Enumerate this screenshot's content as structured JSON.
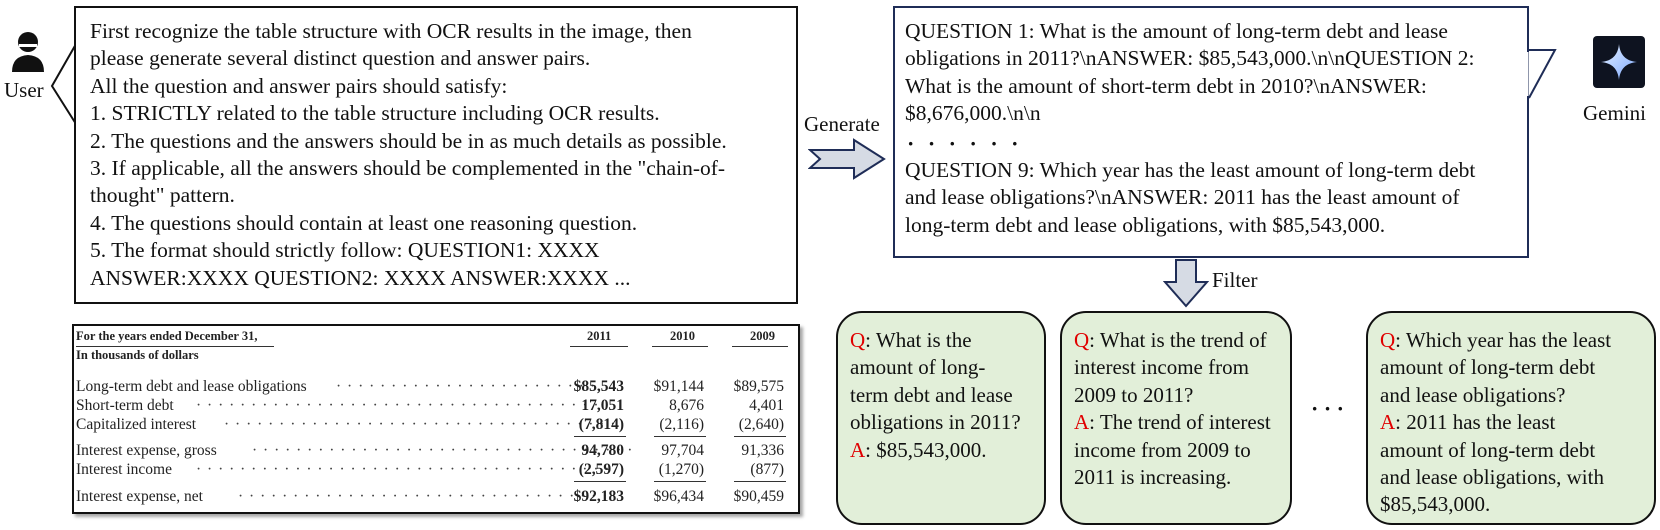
{
  "user": {
    "label": "User"
  },
  "gemini": {
    "label": "Gemini"
  },
  "prompt": {
    "lines": [
      "First recognize the table structure with OCR results in the image, then",
      "please generate several distinct question and answer pairs.",
      "All the question and answer pairs should satisfy:",
      "1. STRICTLY related to the table structure including OCR results.",
      "2. The questions and the answers should be in as much details as possible.",
      "3. If applicable, all the answers should be complemented in the \"chain-of-",
      "thought\" pattern.",
      "4. The questions should contain at least one reasoning question.",
      "5. The format should strictly follow: QUESTION1: XXXX",
      "ANSWER:XXXX QUESTION2: XXXX ANSWER:XXXX ..."
    ]
  },
  "generate_label": "Generate",
  "filter_label": "Filter",
  "response": {
    "lines_top": [
      "QUESTION 1: What is the amount of long-term debt and lease",
      "obligations in 2011?\\nANSWER: $85,543,000.\\n\\nQUESTION 2:",
      "What is the amount of short-term debt in 2010?\\nANSWER:",
      "$8,676,000.\\n\\n"
    ],
    "ellipsis": "· · · · · ·",
    "lines_bottom": [
      "QUESTION 9: Which year has the least amount of long-term debt",
      "and lease obligations?\\nANSWER: 2011 has the least amount of",
      "long-term debt and lease obligations, with $85,543,000."
    ]
  },
  "table": {
    "header_left_1": "For the years ended December 31,",
    "header_left_2": "In thousands of dollars",
    "years": [
      "2011",
      "2010",
      "2009"
    ],
    "rows": [
      {
        "label": "Long-term debt and lease obligations",
        "dots": "· · · · · · · · · · · · · · · · · · · · · · · ·",
        "v2011": "$85,543",
        "v2010": "$91,144",
        "v2009": "$89,575"
      },
      {
        "label": "Short-term debt",
        "dots": "· · · · · · · · · · · · · · · · · · · · · · · · · · · · · · · · · · · · ·",
        "v2011": "17,051",
        "v2010": "8,676",
        "v2009": "4,401"
      },
      {
        "label": "Capitalized interest",
        "dots": "· · · · · · · · · · · · · · · · · · · · · · · · · · · · · · · · · · · ·",
        "v2011": "(7,814)",
        "v2010": "(2,116)",
        "v2009": "(2,640)"
      },
      {
        "label": "Interest expense, gross",
        "dots": "· · · · · · · · · · · · · · · · · · · · · · · · · · · · · · · · · · ·",
        "v2011": "94,780",
        "v2010": "97,704",
        "v2009": "91,336"
      },
      {
        "label": "Interest income",
        "dots": "· · · · · · · · · · · · · · · · · · · · · · · · · · · · · · · · · · · · · ·",
        "v2011": "(2,597)",
        "v2010": "(1,270)",
        "v2009": "(877)"
      },
      {
        "label": "Interest expense, net",
        "dots": "· · · · · · · · · · · · · · · · · · · · · · · · · · · · · · · · · ·",
        "v2011": "$92,183",
        "v2010": "$96,434",
        "v2009": "$90,459"
      }
    ]
  },
  "qa_cards": [
    {
      "q_prefix": "Q",
      "q_lines": [
        ": What is the",
        "amount of long-",
        "term debt and lease",
        "obligations in 2011?"
      ],
      "a_prefix": "A",
      "a_lines": [
        ": $85,543,000."
      ]
    },
    {
      "q_prefix": "Q",
      "q_lines": [
        ": What is the trend of",
        "interest income from",
        "2009 to 2011?"
      ],
      "a_prefix": "A",
      "a_lines": [
        ": The trend of interest",
        "income from 2009 to",
        "2011 is increasing."
      ]
    },
    {
      "q_prefix": "Q",
      "q_lines": [
        ": Which year has the least",
        "amount of long-term debt",
        "and lease obligations?"
      ],
      "a_prefix": "A",
      "a_lines": [
        ": 2011 has the least",
        "amount of long-term debt",
        "and lease obligations, with",
        "$85,543,000."
      ]
    }
  ],
  "cards_ellipsis": "· · ·",
  "colors": {
    "card_fill": "#e2efd9",
    "q_red": "#e00000",
    "response_border": "#1f2d57",
    "arrow_fill": "#d6dbe4"
  }
}
